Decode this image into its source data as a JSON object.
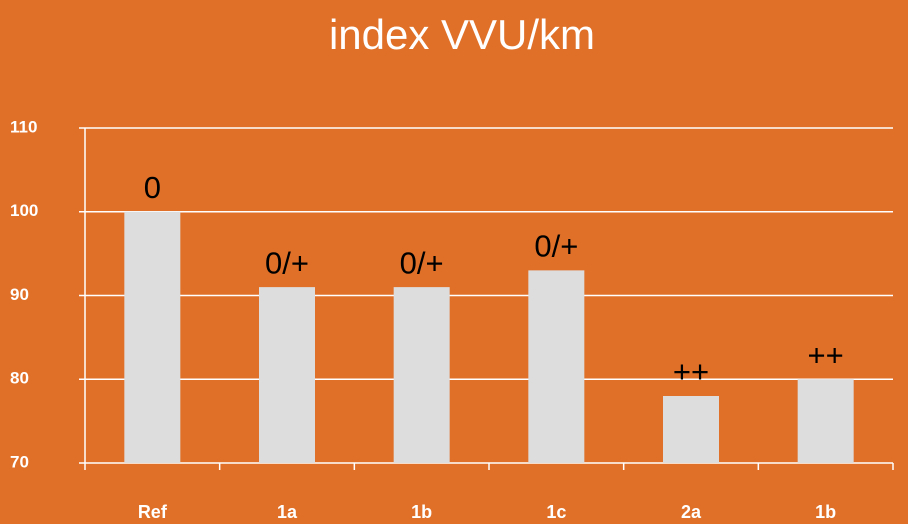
{
  "chart_data": {
    "type": "bar",
    "title": "index VVU/km",
    "categories": [
      "Ref",
      "1a",
      "1b",
      "1c",
      "2a",
      "1b"
    ],
    "values": [
      100,
      91,
      91,
      93,
      78,
      80
    ],
    "annotations": [
      "0",
      "0/+",
      "0/+",
      "0/+",
      "++",
      "++"
    ],
    "color": "#dddddd",
    "ylim": [
      70,
      110
    ],
    "yticks": [
      70,
      80,
      90,
      100,
      110
    ],
    "grid": true
  }
}
